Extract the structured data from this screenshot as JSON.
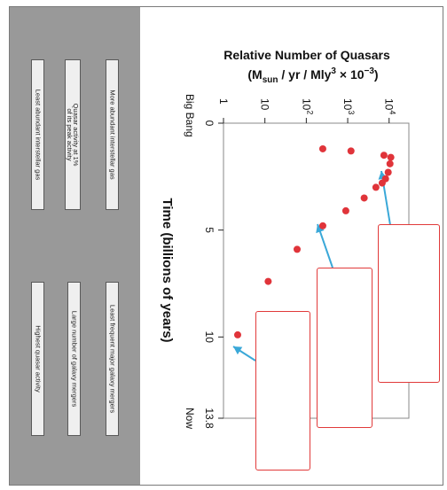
{
  "cards": [
    {
      "text": "More abundant interstellar gas",
      "lines": [
        "More abundant interstellar gas"
      ]
    },
    {
      "text": "Quasar activity at 1% of its peak activity",
      "lines": [
        "Quasar activity at 1%",
        "of its peak activity"
      ]
    },
    {
      "text": "Least abundant interstellar gas",
      "lines": [
        "Least abundant interstellar gas"
      ]
    },
    {
      "text": "Least frequent major galaxy mergers",
      "lines": [
        "Least frequent major galaxy mergers"
      ]
    },
    {
      "text": "Large number of galaxy mergers",
      "lines": [
        "Large number of galaxy mergers"
      ]
    },
    {
      "text": "Highest quasar activity",
      "lines": [
        "Highest quasar activity"
      ]
    }
  ],
  "chart_data": {
    "type": "scatter",
    "title_line1": "Relative Number of Quasars",
    "title_line2_parts": {
      "open": "(M",
      "sub": "sun",
      "mid": " / yr / Mly",
      "sup": "3",
      "times": " × 10",
      "exp": "−3",
      "close": ")"
    },
    "ylabel": "Time (billions of years)",
    "y_top_label": "Big Bang",
    "y_bottom_label": "Now",
    "x_scale": "log",
    "x_ticks": [
      {
        "value": 1,
        "base": "1",
        "exp": ""
      },
      {
        "value": 10,
        "base": "10",
        "exp": ""
      },
      {
        "value": 100,
        "base": "10",
        "exp": "2"
      },
      {
        "value": 1000,
        "base": "10",
        "exp": "3"
      },
      {
        "value": 10000,
        "base": "10",
        "exp": "4"
      }
    ],
    "y_ticks": [
      {
        "value": 0,
        "label": "0"
      },
      {
        "value": 5,
        "label": "5"
      },
      {
        "value": 10,
        "label": "10"
      },
      {
        "value": 13.8,
        "label": "13.8"
      }
    ],
    "ylim": [
      0,
      13.8
    ],
    "xlim": [
      1,
      30000
    ],
    "point_color": "#e0343a",
    "arrow_color": "#3aa8d8",
    "points": [
      {
        "x": 250,
        "y": 1.2
      },
      {
        "x": 1200,
        "y": 1.3
      },
      {
        "x": 7500,
        "y": 1.5
      },
      {
        "x": 11000,
        "y": 1.6
      },
      {
        "x": 10500,
        "y": 1.9
      },
      {
        "x": 9500,
        "y": 2.3
      },
      {
        "x": 8200,
        "y": 2.6
      },
      {
        "x": 6800,
        "y": 2.8
      },
      {
        "x": 4800,
        "y": 3.0
      },
      {
        "x": 2500,
        "y": 3.5
      },
      {
        "x": 900,
        "y": 4.1
      },
      {
        "x": 250,
        "y": 4.8
      },
      {
        "x": 60,
        "y": 5.9
      },
      {
        "x": 12,
        "y": 7.4
      },
      {
        "x": 2.2,
        "y": 9.9
      }
    ]
  }
}
